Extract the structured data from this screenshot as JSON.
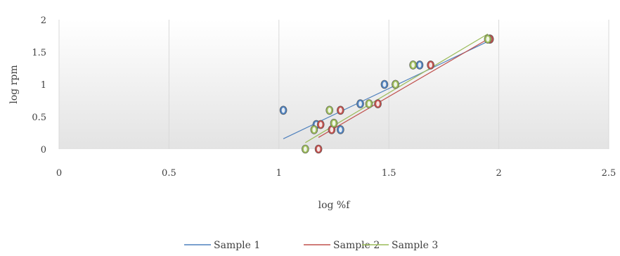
{
  "chart_data": {
    "type": "scatter",
    "title": "",
    "xlabel": "log %f",
    "ylabel": "log rpm",
    "xlim": [
      0,
      2.5
    ],
    "ylim": [
      0,
      2
    ],
    "x_ticks": [
      "0",
      "0.5",
      "1",
      "1.5",
      "2",
      "2.5"
    ],
    "y_ticks": [
      "0",
      "0.5",
      "1",
      "1.5",
      "2"
    ],
    "grid": "vertical",
    "legend_position": "bottom",
    "series": [
      {
        "name": "Sample 1",
        "color": "#4f81bd",
        "points": [
          [
            1.02,
            0.6
          ],
          [
            1.17,
            0.38
          ],
          [
            1.28,
            0.3
          ],
          [
            1.37,
            0.7
          ],
          [
            1.48,
            1.0
          ],
          [
            1.64,
            1.3
          ],
          [
            1.96,
            1.7
          ]
        ],
        "trendline": {
          "x": [
            1.02,
            1.96
          ],
          "y": [
            0.16,
            1.68
          ]
        }
      },
      {
        "name": "Sample 2",
        "color": "#c0504d",
        "points": [
          [
            1.18,
            0.0
          ],
          [
            1.19,
            0.38
          ],
          [
            1.24,
            0.3
          ],
          [
            1.28,
            0.6
          ],
          [
            1.45,
            0.7
          ],
          [
            1.53,
            1.0
          ],
          [
            1.69,
            1.3
          ],
          [
            1.96,
            1.7
          ]
        ],
        "trendline": {
          "x": [
            1.18,
            1.96
          ],
          "y": [
            0.18,
            1.72
          ]
        }
      },
      {
        "name": "Sample 3",
        "color": "#9bbb59",
        "points": [
          [
            1.12,
            0.0
          ],
          [
            1.16,
            0.3
          ],
          [
            1.23,
            0.6
          ],
          [
            1.25,
            0.4
          ],
          [
            1.41,
            0.7
          ],
          [
            1.53,
            1.0
          ],
          [
            1.61,
            1.3
          ],
          [
            1.95,
            1.7
          ]
        ],
        "trendline": {
          "x": [
            1.12,
            1.95
          ],
          "y": [
            0.1,
            1.78
          ]
        }
      }
    ]
  }
}
